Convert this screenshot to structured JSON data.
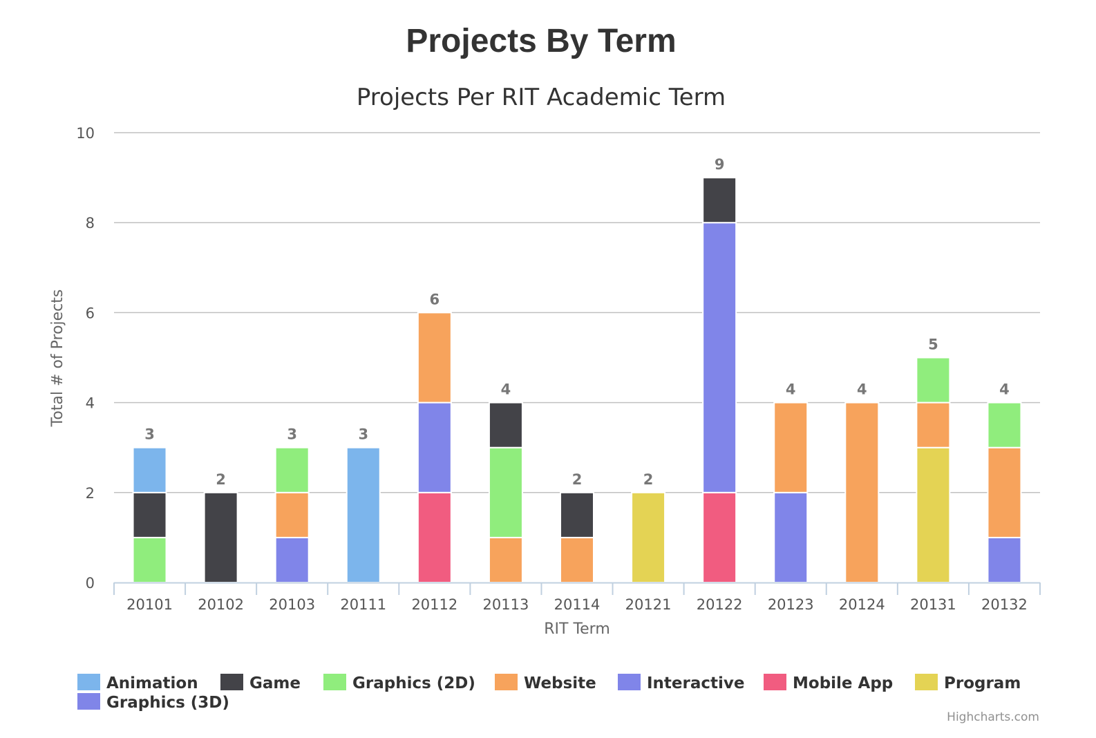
{
  "chart_data": {
    "type": "bar",
    "stacked": true,
    "title": "Projects By Term",
    "subtitle": "Projects Per RIT Academic Term",
    "xlabel": "RIT Term",
    "ylabel": "Total # of Projects",
    "ylim": [
      0,
      10
    ],
    "yticks": [
      "0",
      "2",
      "4",
      "6",
      "8",
      "10"
    ],
    "grid": true,
    "legend_placement": "bottom",
    "categories": [
      "20101",
      "20102",
      "20103",
      "20111",
      "20112",
      "20113",
      "20114",
      "20121",
      "20122",
      "20123",
      "20124",
      "20131",
      "20132"
    ],
    "totals": [
      3,
      2,
      3,
      3,
      6,
      4,
      2,
      2,
      9,
      4,
      4,
      5,
      4
    ],
    "series": [
      {
        "name": "Animation",
        "color": "#7cb5ec",
        "values": [
          1,
          0,
          0,
          3,
          0,
          0,
          0,
          0,
          0,
          0,
          0,
          0,
          0
        ]
      },
      {
        "name": "Game",
        "color": "#434348",
        "values": [
          1,
          2,
          0,
          0,
          0,
          1,
          1,
          0,
          1,
          0,
          0,
          0,
          0
        ]
      },
      {
        "name": "Graphics (2D)",
        "color": "#90ed7d",
        "values": [
          1,
          0,
          1,
          0,
          0,
          2,
          0,
          0,
          0,
          0,
          0,
          1,
          1
        ]
      },
      {
        "name": "Website",
        "color": "#f7a35c",
        "values": [
          0,
          0,
          1,
          0,
          2,
          1,
          1,
          0,
          0,
          2,
          4,
          1,
          2
        ]
      },
      {
        "name": "Interactive",
        "color": "#8085e9",
        "values": [
          0,
          0,
          1,
          0,
          2,
          0,
          0,
          0,
          6,
          2,
          0,
          0,
          1
        ]
      },
      {
        "name": "Mobile App",
        "color": "#f15c80",
        "values": [
          0,
          0,
          0,
          0,
          2,
          0,
          0,
          0,
          2,
          0,
          0,
          0,
          0
        ]
      },
      {
        "name": "Program",
        "color": "#e4d354",
        "values": [
          0,
          0,
          0,
          0,
          0,
          0,
          0,
          2,
          0,
          0,
          0,
          3,
          0
        ]
      },
      {
        "name": "Graphics (3D)",
        "color": "#8085e8",
        "values": [
          0,
          0,
          0,
          0,
          0,
          0,
          0,
          0,
          0,
          0,
          0,
          0,
          0
        ]
      }
    ],
    "credits": "Highcharts.com"
  }
}
